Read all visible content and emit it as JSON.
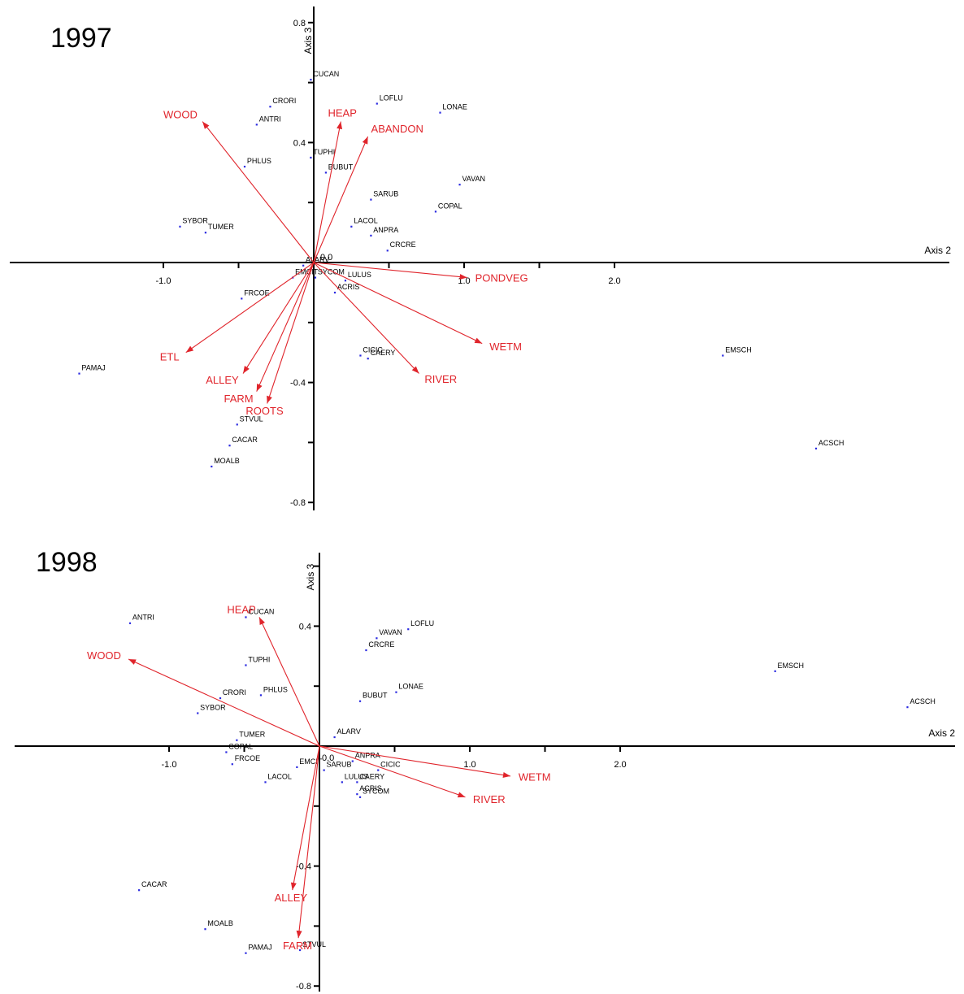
{
  "chart_data": [
    {
      "type": "scatter",
      "title": "1997",
      "xlabel": "Axis 2",
      "ylabel": "Axis 3",
      "xticks": [
        -1.0,
        1.0,
        2.0
      ],
      "yticks": [
        0.8,
        0.4,
        -0.4,
        -0.8
      ],
      "origin_label": "0.0",
      "species": [
        {
          "name": "CUCAN",
          "x": -0.02,
          "y": 0.61
        },
        {
          "name": "CRORI",
          "x": -0.29,
          "y": 0.52
        },
        {
          "name": "ANTRI",
          "x": -0.38,
          "y": 0.46
        },
        {
          "name": "TUPHI",
          "x": -0.02,
          "y": 0.35
        },
        {
          "name": "PHLUS",
          "x": -0.46,
          "y": 0.32
        },
        {
          "name": "SYBOR",
          "x": -0.89,
          "y": 0.12
        },
        {
          "name": "TUMER",
          "x": -0.72,
          "y": 0.1
        },
        {
          "name": "LOFLU",
          "x": 0.42,
          "y": 0.53
        },
        {
          "name": "LONAE",
          "x": 0.84,
          "y": 0.5
        },
        {
          "name": "BUBUT",
          "x": 0.08,
          "y": 0.3
        },
        {
          "name": "VAVAN",
          "x": 0.97,
          "y": 0.26
        },
        {
          "name": "SARUB",
          "x": 0.38,
          "y": 0.21
        },
        {
          "name": "COPAL",
          "x": 0.81,
          "y": 0.17
        },
        {
          "name": "LACOL",
          "x": 0.25,
          "y": 0.12
        },
        {
          "name": "ANPRA",
          "x": 0.38,
          "y": 0.09
        },
        {
          "name": "CRCRE",
          "x": 0.49,
          "y": 0.04
        },
        {
          "name": "ALARV",
          "x": -0.07,
          "y": -0.01
        },
        {
          "name": "SYCOM",
          "x": 0.01,
          "y": -0.05
        },
        {
          "name": "EMCIT",
          "x": -0.14,
          "y": -0.05
        },
        {
          "name": "LULUS",
          "x": 0.21,
          "y": -0.06
        },
        {
          "name": "ACRIS",
          "x": 0.14,
          "y": -0.1
        },
        {
          "name": "FRCOE",
          "x": -0.48,
          "y": -0.12
        },
        {
          "name": "CICIC",
          "x": 0.31,
          "y": -0.31
        },
        {
          "name": "CAERY",
          "x": 0.36,
          "y": -0.32
        },
        {
          "name": "PAMAJ",
          "x": -1.56,
          "y": -0.37
        },
        {
          "name": "STVUL",
          "x": -0.51,
          "y": -0.54
        },
        {
          "name": "CACAR",
          "x": -0.56,
          "y": -0.61
        },
        {
          "name": "MOALB",
          "x": -0.68,
          "y": -0.68
        },
        {
          "name": "EMSCH",
          "x": 2.72,
          "y": -0.31
        },
        {
          "name": "ACSCH",
          "x": 3.34,
          "y": -0.62
        }
      ],
      "env_vectors": [
        {
          "name": "WOOD",
          "x": -0.74,
          "y": 0.47
        },
        {
          "name": "HEAP",
          "x": 0.18,
          "y": 0.47
        },
        {
          "name": "ABANDON",
          "x": 0.36,
          "y": 0.42
        },
        {
          "name": "PONDVEG",
          "x": 1.02,
          "y": -0.05
        },
        {
          "name": "WETM",
          "x": 1.12,
          "y": -0.27
        },
        {
          "name": "RIVER",
          "x": 0.7,
          "y": -0.37
        },
        {
          "name": "ETL",
          "x": -0.85,
          "y": -0.3
        },
        {
          "name": "ALLEY",
          "x": -0.47,
          "y": -0.37
        },
        {
          "name": "FARM",
          "x": -0.38,
          "y": -0.43
        },
        {
          "name": "ROOTS",
          "x": -0.31,
          "y": -0.47
        }
      ]
    },
    {
      "type": "scatter",
      "title": "1998",
      "xlabel": "Axis 2",
      "ylabel": "Axis 3",
      "xticks": [
        -1.0,
        1.0,
        2.0
      ],
      "yticks": [
        0.4,
        -0.4,
        -0.8
      ],
      "origin_label": "0.0",
      "species": [
        {
          "name": "ANTRI",
          "x": -1.26,
          "y": 0.41
        },
        {
          "name": "CUCAN",
          "x": -0.49,
          "y": 0.43
        },
        {
          "name": "TUPHI",
          "x": -0.49,
          "y": 0.27
        },
        {
          "name": "CRORI",
          "x": -0.66,
          "y": 0.16
        },
        {
          "name": "PHLUS",
          "x": -0.39,
          "y": 0.17
        },
        {
          "name": "SYBOR",
          "x": -0.81,
          "y": 0.11
        },
        {
          "name": "TUMER",
          "x": -0.55,
          "y": 0.02
        },
        {
          "name": "COPAL",
          "x": -0.62,
          "y": -0.02
        },
        {
          "name": "FRCOE",
          "x": -0.58,
          "y": -0.06
        },
        {
          "name": "LACOL",
          "x": -0.36,
          "y": -0.12
        },
        {
          "name": "EMCIT",
          "x": -0.15,
          "y": -0.07
        },
        {
          "name": "ALARV",
          "x": 0.1,
          "y": 0.03
        },
        {
          "name": "SARUB",
          "x": 0.03,
          "y": -0.08
        },
        {
          "name": "ANPRA",
          "x": 0.22,
          "y": -0.05
        },
        {
          "name": "CICIC",
          "x": 0.39,
          "y": -0.08
        },
        {
          "name": "LULUS",
          "x": 0.15,
          "y": -0.12
        },
        {
          "name": "CAERY",
          "x": 0.25,
          "y": -0.12
        },
        {
          "name": "ACRIS",
          "x": 0.25,
          "y": -0.16
        },
        {
          "name": "SYCOM",
          "x": 0.27,
          "y": -0.17
        },
        {
          "name": "LOFLU",
          "x": 0.59,
          "y": 0.39
        },
        {
          "name": "VAVAN",
          "x": 0.38,
          "y": 0.36
        },
        {
          "name": "CRCRE",
          "x": 0.31,
          "y": 0.32
        },
        {
          "name": "LONAE",
          "x": 0.51,
          "y": 0.18
        },
        {
          "name": "BUBUT",
          "x": 0.27,
          "y": 0.15
        },
        {
          "name": "EMSCH",
          "x": 3.03,
          "y": 0.25
        },
        {
          "name": "ACSCH",
          "x": 3.91,
          "y": 0.13
        },
        {
          "name": "CACAR",
          "x": -1.2,
          "y": -0.48
        },
        {
          "name": "MOALB",
          "x": -0.76,
          "y": -0.61
        },
        {
          "name": "PAMAJ",
          "x": -0.49,
          "y": -0.69
        },
        {
          "name": "STVUL",
          "x": -0.13,
          "y": -0.68
        }
      ],
      "env_vectors": [
        {
          "name": "HEAP",
          "x": -0.4,
          "y": 0.43
        },
        {
          "name": "WOOD",
          "x": -1.27,
          "y": 0.29
        },
        {
          "name": "WETM",
          "x": 1.27,
          "y": -0.1
        },
        {
          "name": "RIVER",
          "x": 0.97,
          "y": -0.17
        },
        {
          "name": "ALLEY",
          "x": -0.18,
          "y": -0.48
        },
        {
          "name": "FARM",
          "x": -0.14,
          "y": -0.64
        }
      ]
    }
  ]
}
